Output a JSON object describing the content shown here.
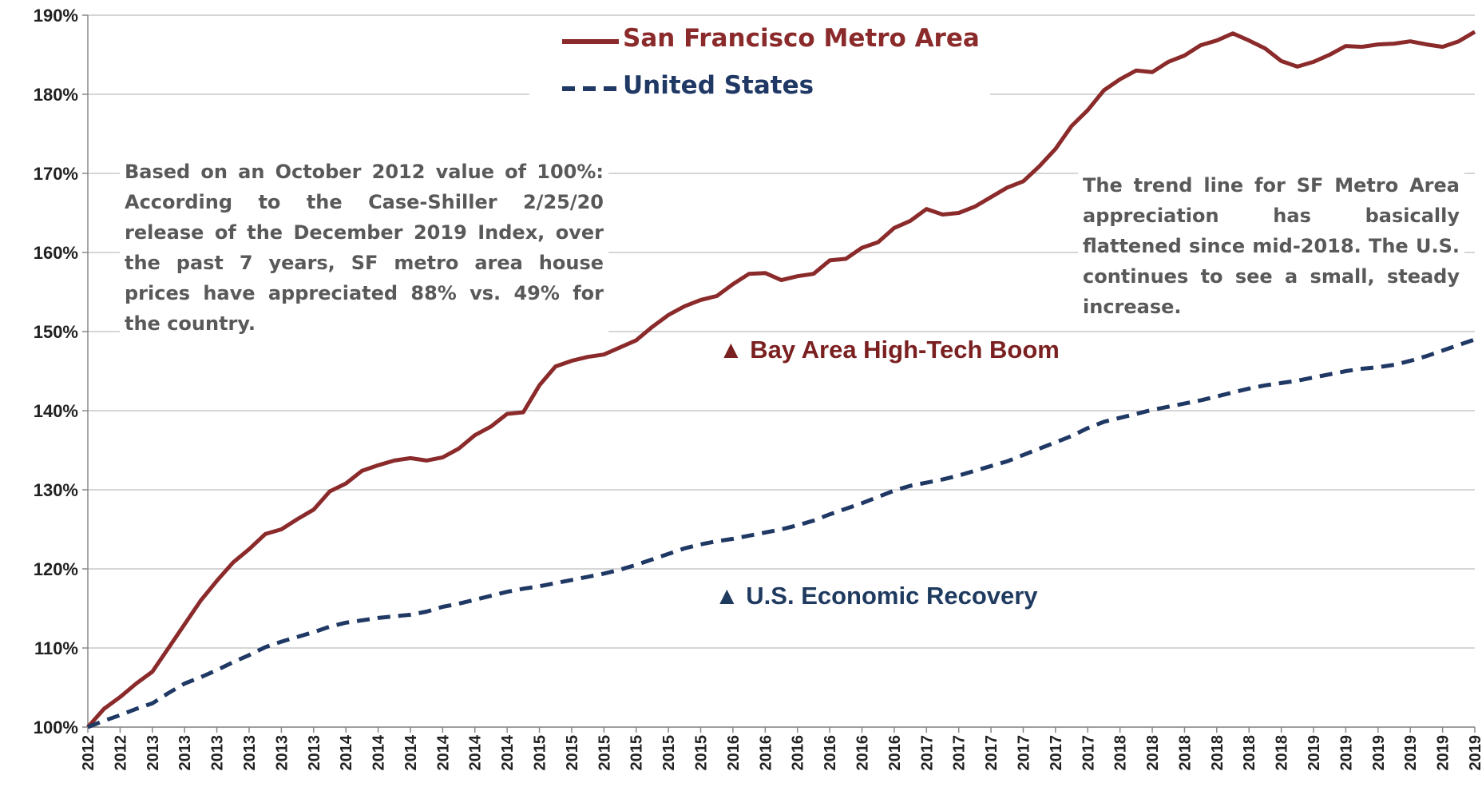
{
  "chart_data": {
    "type": "line",
    "annotations": [
      "Based on an October 2012 value of 100%: According to the Case-Shiller 2/25/20 release of the December 2019 Index, over the past 7 years, SF metro area house prices have appreciated 88% vs. 49% for the country.",
      "The trend line for SF Metro Area appreciation has basically flattened since mid-2018. The U.S. continues to see a small, steady increase.",
      "▲ Bay Area High-Tech Boom",
      "▲ U.S. Economic Recovery"
    ],
    "categories": [
      "2012",
      null,
      "2012",
      null,
      "2013",
      null,
      "2013",
      null,
      "2013",
      null,
      "2013",
      null,
      "2013",
      null,
      "2013",
      null,
      "2014",
      null,
      "2014",
      null,
      "2014",
      null,
      "2014",
      null,
      "2014",
      null,
      "2014",
      null,
      "2015",
      null,
      "2015",
      null,
      "2015",
      null,
      "2015",
      null,
      "2015",
      null,
      "2015",
      null,
      "2016",
      null,
      "2016",
      null,
      "2016",
      null,
      "2016",
      null,
      "2016",
      null,
      "2016",
      null,
      "2017",
      null,
      "2017",
      null,
      "2017",
      null,
      "2017",
      null,
      "2017",
      null,
      "2017",
      null,
      "2018",
      null,
      "2018",
      null,
      "2018",
      null,
      "2018",
      null,
      "2018",
      null,
      "2018",
      null,
      "2019",
      null,
      "2019",
      null,
      "2019",
      null,
      "2019",
      null,
      "2019",
      null,
      "2019"
    ],
    "series": [
      {
        "name": "San Francisco Metro Area",
        "color": "#8b2a2a",
        "dashed": false,
        "values": [
          100,
          102.3,
          103.8,
          105.5,
          107,
          110,
          113,
          116,
          118.5,
          120.8,
          122.5,
          124.4,
          125,
          126.3,
          127.5,
          129.8,
          130.8,
          132.4,
          133.1,
          133.7,
          134,
          133.7,
          134.1,
          135.2,
          136.9,
          138,
          139.6,
          139.8,
          143.2,
          145.6,
          146.3,
          146.8,
          147.1,
          148,
          148.9,
          150.6,
          152.1,
          153.2,
          154,
          154.5,
          156,
          157.3,
          157.4,
          156.5,
          157,
          157.3,
          159,
          159.2,
          160.6,
          161.3,
          163.1,
          164,
          165.5,
          164.8,
          165,
          165.8,
          167,
          168.2,
          169,
          170.9,
          173.1,
          176,
          178,
          180.5,
          181.9,
          183,
          182.8,
          184.1,
          184.9,
          186.2,
          186.8,
          187.7,
          186.8,
          185.8,
          184.2,
          183.5,
          184.1,
          185,
          186.1,
          186,
          186.3,
          186.4,
          186.7,
          186.3,
          186,
          186.7,
          187.9
        ]
      },
      {
        "name": "United States",
        "color": "#1f3864",
        "dashed": true,
        "values": [
          100,
          100.8,
          101.5,
          102.3,
          103,
          104.3,
          105.5,
          106.3,
          107.2,
          108.2,
          109.1,
          110.1,
          110.8,
          111.4,
          112,
          112.7,
          113.2,
          113.5,
          113.8,
          114,
          114.2,
          114.6,
          115.2,
          115.6,
          116.1,
          116.6,
          117.1,
          117.5,
          117.8,
          118.2,
          118.6,
          119,
          119.4,
          119.9,
          120.5,
          121.2,
          121.9,
          122.6,
          123.1,
          123.5,
          123.8,
          124.2,
          124.6,
          125,
          125.5,
          126.1,
          126.9,
          127.6,
          128.3,
          129.1,
          129.9,
          130.5,
          130.9,
          131.3,
          131.8,
          132.4,
          133,
          133.6,
          134.4,
          135.2,
          136,
          136.8,
          137.8,
          138.6,
          139.1,
          139.6,
          140.1,
          140.5,
          140.9,
          141.3,
          141.8,
          142.3,
          142.8,
          143.2,
          143.5,
          143.8,
          144.2,
          144.6,
          145,
          145.3,
          145.5,
          145.8,
          146.3,
          146.9,
          147.6,
          148.3,
          149
        ]
      }
    ],
    "ylim": [
      100,
      190
    ],
    "yticks": [
      {
        "value": 100,
        "label": "100%"
      },
      {
        "value": 110,
        "label": "110%"
      },
      {
        "value": 120,
        "label": "120%"
      },
      {
        "value": 130,
        "label": "130%"
      },
      {
        "value": 140,
        "label": "140%"
      },
      {
        "value": 150,
        "label": "150%"
      },
      {
        "value": 160,
        "label": "160%"
      },
      {
        "value": 170,
        "label": "170%"
      },
      {
        "value": 180,
        "label": "180%"
      },
      {
        "value": 190,
        "label": "190%"
      }
    ],
    "grid": true
  }
}
